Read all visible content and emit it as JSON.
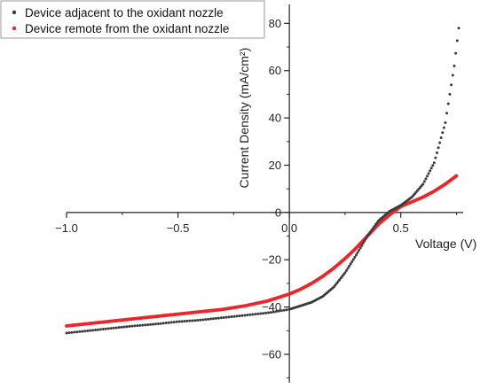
{
  "chart_data": {
    "type": "scatter",
    "xlabel": "Voltage (V)",
    "ylabel": "Current Density (mA/cm²)",
    "xlim": [
      -1.0,
      0.78
    ],
    "ylim": [
      -72,
      88
    ],
    "x_ticks": [
      -1.0,
      -0.5,
      0.0,
      0.5
    ],
    "x_tick_labels": [
      "−1.0",
      "−0.5",
      "0.0",
      "0.5"
    ],
    "y_ticks": [
      -60,
      -40,
      -20,
      0,
      20,
      40,
      60,
      80
    ],
    "y_tick_labels": [
      "−60",
      "−40",
      "−20",
      "0",
      "20",
      "40",
      "60",
      "80"
    ],
    "grid": false,
    "legend_position": "top-left",
    "series": [
      {
        "name": "Device adjacent to the oxidant nozzle",
        "color": "#3a3a3a",
        "marker": "dot",
        "x": [
          -1.0,
          -0.9,
          -0.8,
          -0.7,
          -0.6,
          -0.5,
          -0.4,
          -0.3,
          -0.2,
          -0.1,
          0.0,
          0.05,
          0.1,
          0.15,
          0.2,
          0.25,
          0.3,
          0.35,
          0.4,
          0.45,
          0.5,
          0.55,
          0.6,
          0.65,
          0.7,
          0.72,
          0.74,
          0.76
        ],
        "y": [
          -51,
          -50,
          -49,
          -48,
          -47.2,
          -46.2,
          -45.5,
          -44.5,
          -43.5,
          -42.5,
          -41,
          -39.5,
          -38,
          -35.5,
          -31.5,
          -25.5,
          -18,
          -10,
          -3.5,
          0.5,
          3,
          6.5,
          12,
          21,
          38,
          50,
          62,
          78
        ]
      },
      {
        "name": "Device remote from the oxidant nozzle",
        "color": "#e8282c",
        "marker": "line",
        "x": [
          -1.0,
          -0.9,
          -0.8,
          -0.7,
          -0.6,
          -0.5,
          -0.4,
          -0.3,
          -0.2,
          -0.1,
          -0.05,
          0.0,
          0.05,
          0.1,
          0.15,
          0.2,
          0.25,
          0.3,
          0.35,
          0.4,
          0.45,
          0.5,
          0.55,
          0.6,
          0.65,
          0.7,
          0.75
        ],
        "y": [
          -48,
          -47,
          -46,
          -45,
          -44,
          -43,
          -42,
          -41,
          -39.5,
          -37.5,
          -36,
          -34.5,
          -32.5,
          -30,
          -27,
          -23.5,
          -19.5,
          -15,
          -10,
          -5,
          -1,
          2.5,
          4.5,
          6.5,
          9,
          12,
          15.5
        ]
      }
    ]
  }
}
